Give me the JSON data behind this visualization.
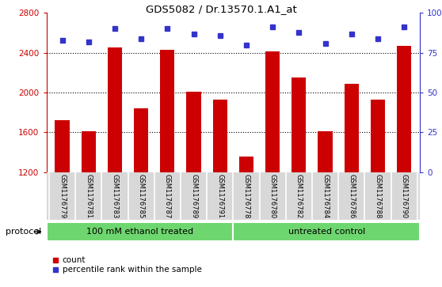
{
  "title": "GDS5082 / Dr.13570.1.A1_at",
  "samples": [
    "GSM1176779",
    "GSM1176781",
    "GSM1176783",
    "GSM1176785",
    "GSM1176787",
    "GSM1176789",
    "GSM1176791",
    "GSM1176778",
    "GSM1176780",
    "GSM1176782",
    "GSM1176784",
    "GSM1176786",
    "GSM1176788",
    "GSM1176790"
  ],
  "counts": [
    1720,
    1610,
    2450,
    1840,
    2430,
    2010,
    1930,
    1360,
    2410,
    2150,
    1610,
    2090,
    1930,
    2470
  ],
  "percentiles": [
    83,
    82,
    90,
    84,
    90,
    87,
    86,
    80,
    91,
    88,
    81,
    87,
    84,
    91
  ],
  "bar_color": "#cc0000",
  "dot_color": "#3333cc",
  "ylim_left": [
    1200,
    2800
  ],
  "ylim_right": [
    0,
    100
  ],
  "yticks_left": [
    1200,
    1600,
    2000,
    2400,
    2800
  ],
  "yticks_right": [
    0,
    25,
    50,
    75,
    100
  ],
  "yticklabels_right": [
    "0",
    "25",
    "50",
    "75",
    "100%"
  ],
  "group1_label": "100 mM ethanol treated",
  "group2_label": "untreated control",
  "protocol_label": "protocol",
  "legend_count_label": "count",
  "legend_pct_label": "percentile rank within the sample",
  "sample_bg_color": "#d8d8d8",
  "group1_color": "#6ed66e",
  "group2_color": "#6ed66e",
  "n_group1": 7,
  "n_group2": 7
}
